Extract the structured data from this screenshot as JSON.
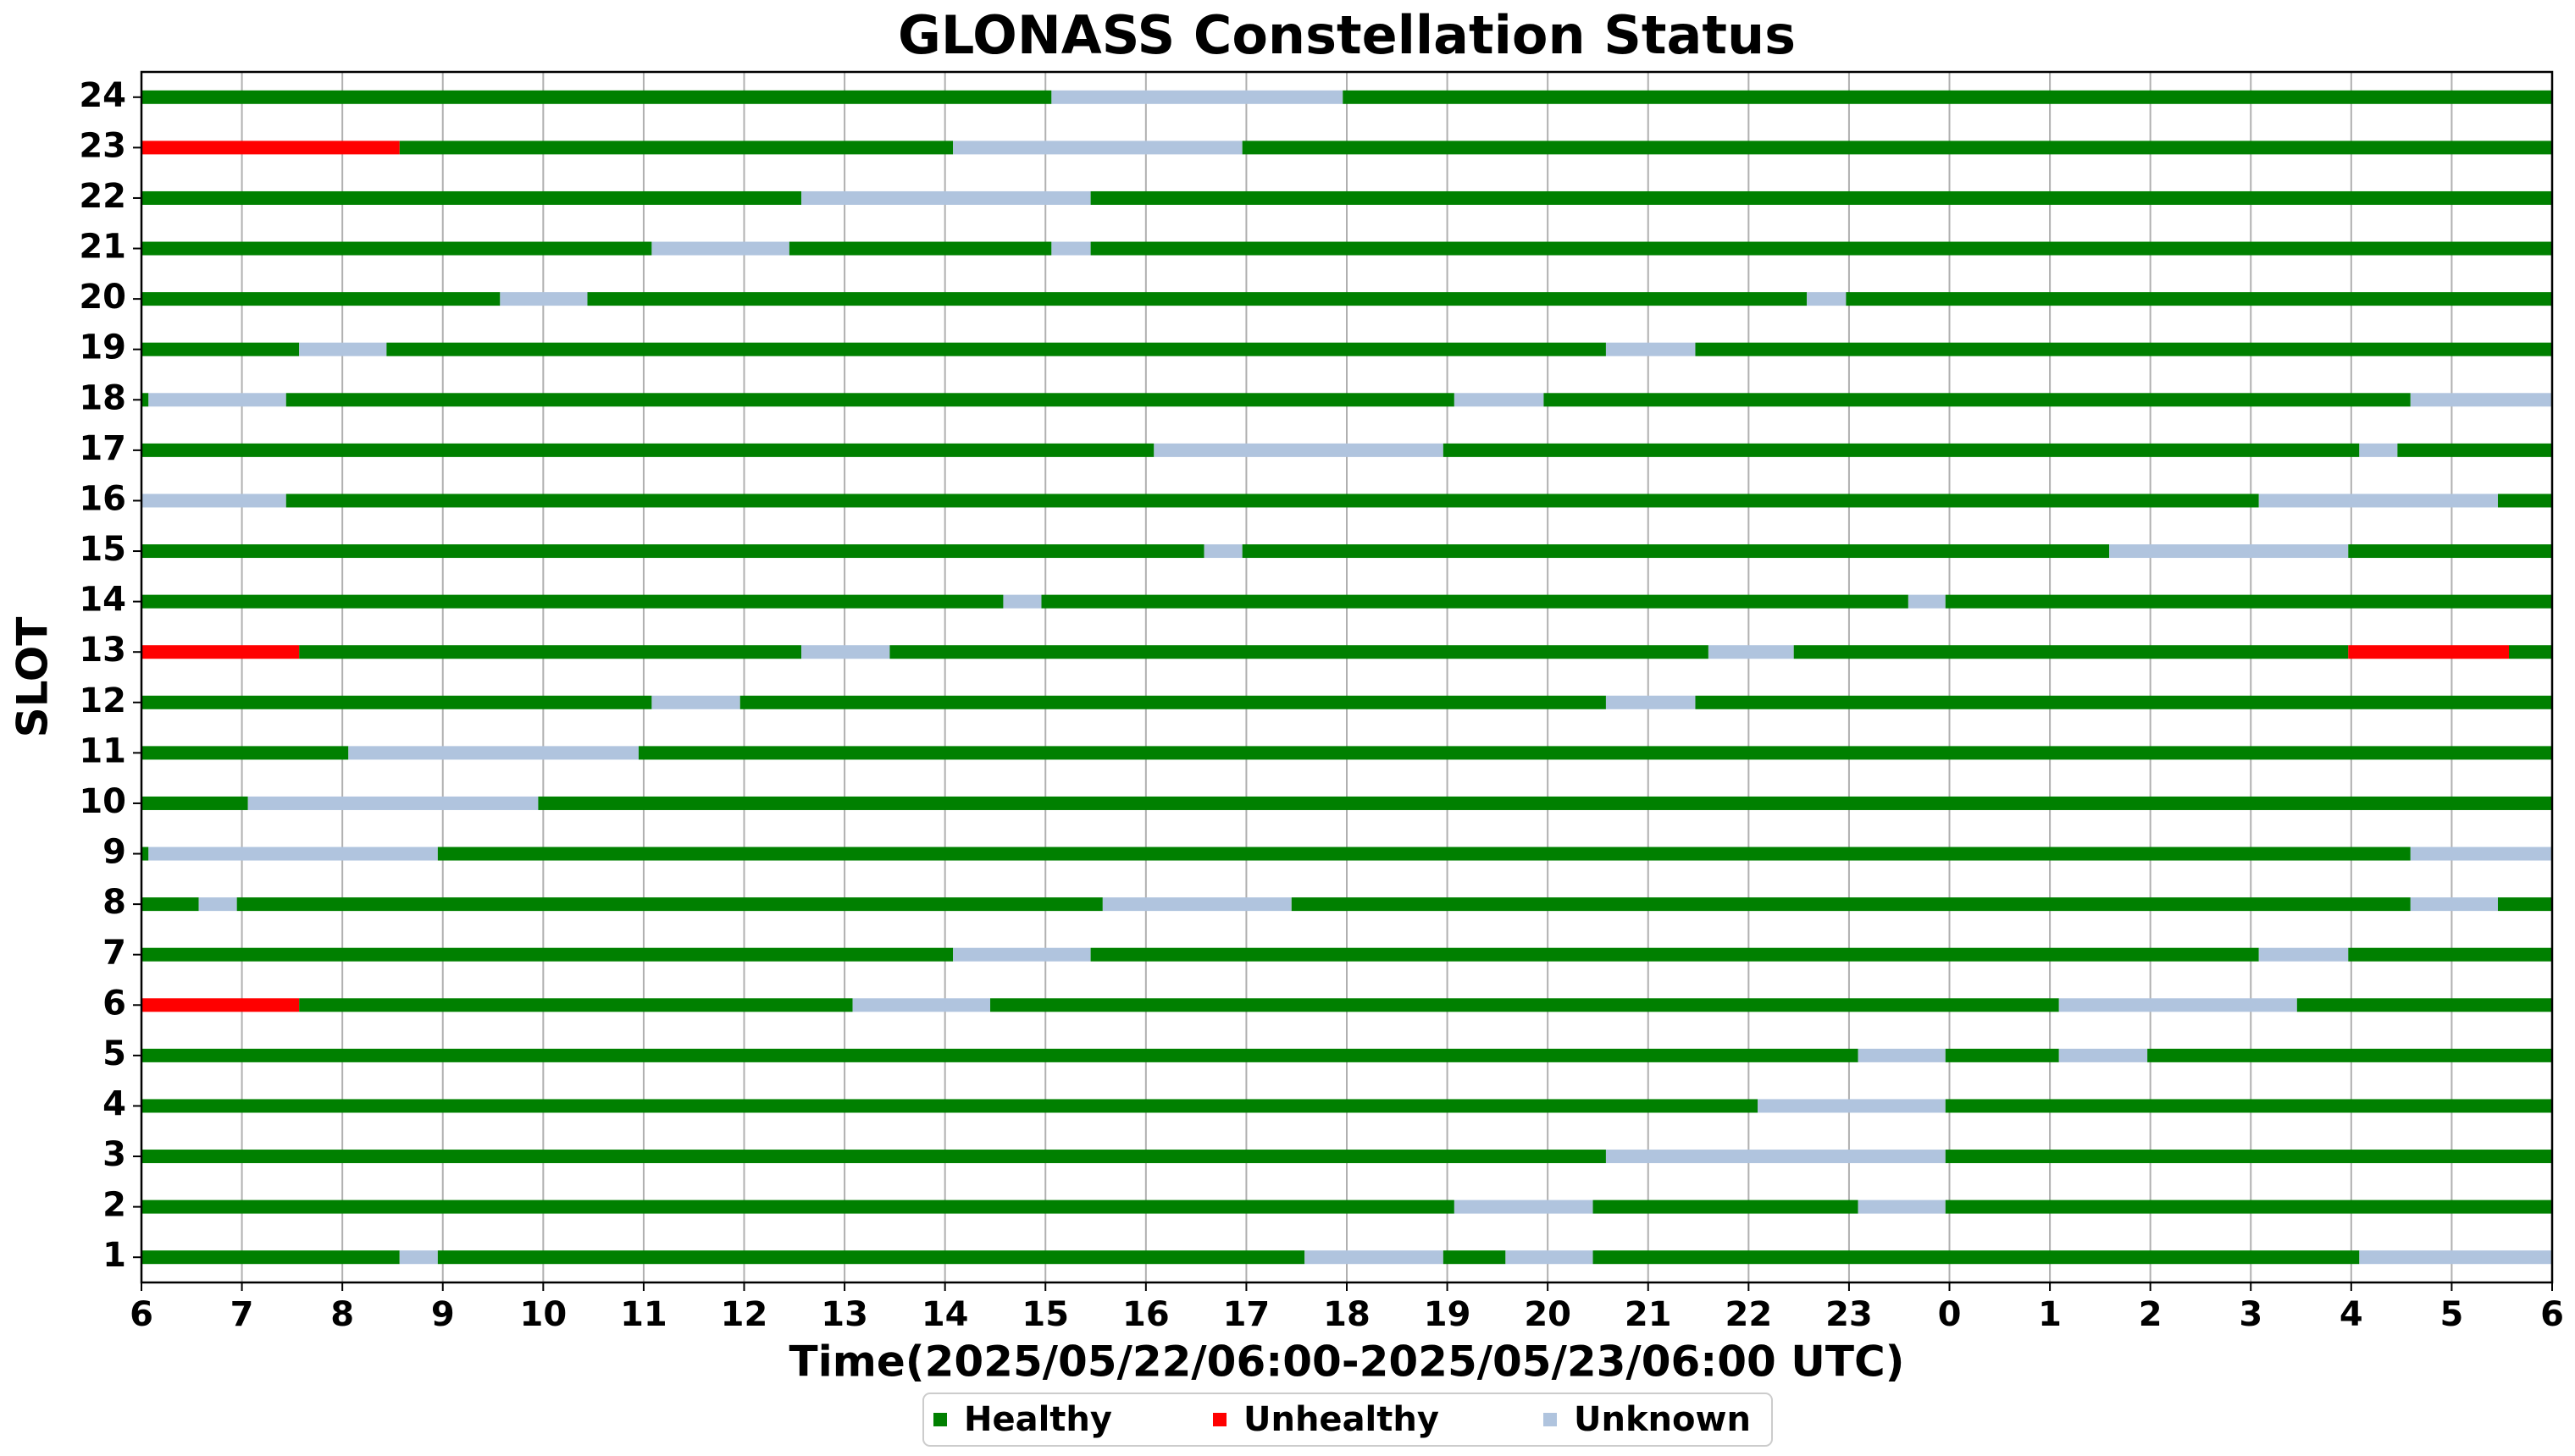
{
  "chart_data": {
    "type": "timeline",
    "title": "GLONASS Constellation Status",
    "xlabel": "Time(2025/05/22/06:00-2025/05/23/06:00 UTC)",
    "ylabel": "SLOT",
    "xlim": [
      6,
      30
    ],
    "xticks": [
      6,
      7,
      8,
      9,
      10,
      11,
      12,
      13,
      14,
      15,
      16,
      17,
      18,
      19,
      20,
      21,
      22,
      23,
      {
        "value": 24,
        "label": "0"
      },
      {
        "value": 25,
        "label": "1"
      },
      {
        "value": 26,
        "label": "2"
      },
      {
        "value": 27,
        "label": "3"
      },
      {
        "value": 28,
        "label": "4"
      },
      {
        "value": 29,
        "label": "5"
      },
      {
        "value": 30,
        "label": "6"
      }
    ],
    "grid": true,
    "legend": "lower center",
    "series": [
      {
        "name": "Healthy",
        "color": "#008000"
      },
      {
        "name": "Unhealthy",
        "color": "#ff0000"
      },
      {
        "name": "Unknown",
        "color": "#b0c4de"
      }
    ],
    "slots": [
      {
        "name": "1",
        "segments": [
          [
            6,
            8.57,
            "Healthy"
          ],
          [
            8.57,
            8.95,
            "Unknown"
          ],
          [
            8.95,
            17.58,
            "Healthy"
          ],
          [
            17.58,
            18.96,
            "Unknown"
          ],
          [
            18.96,
            19.58,
            "Healthy"
          ],
          [
            19.58,
            20.45,
            "Unknown"
          ],
          [
            20.45,
            28.08,
            "Healthy"
          ],
          [
            28.08,
            30,
            "Unknown"
          ]
        ]
      },
      {
        "name": "2",
        "segments": [
          [
            6,
            19.07,
            "Healthy"
          ],
          [
            19.07,
            20.45,
            "Unknown"
          ],
          [
            20.45,
            23.09,
            "Healthy"
          ],
          [
            23.09,
            23.96,
            "Unknown"
          ],
          [
            23.96,
            30,
            "Healthy"
          ]
        ]
      },
      {
        "name": "3",
        "segments": [
          [
            6,
            20.58,
            "Healthy"
          ],
          [
            20.58,
            23.96,
            "Unknown"
          ],
          [
            23.96,
            30,
            "Healthy"
          ]
        ]
      },
      {
        "name": "4",
        "segments": [
          [
            6,
            22.09,
            "Healthy"
          ],
          [
            22.09,
            23.96,
            "Unknown"
          ],
          [
            23.96,
            30,
            "Healthy"
          ]
        ]
      },
      {
        "name": "5",
        "segments": [
          [
            6,
            23.09,
            "Healthy"
          ],
          [
            23.09,
            23.96,
            "Unknown"
          ],
          [
            23.96,
            25.09,
            "Healthy"
          ],
          [
            25.09,
            25.97,
            "Unknown"
          ],
          [
            25.97,
            30,
            "Healthy"
          ]
        ]
      },
      {
        "name": "6",
        "segments": [
          [
            6,
            7.57,
            "Unhealthy"
          ],
          [
            7.57,
            13.08,
            "Healthy"
          ],
          [
            13.08,
            14.45,
            "Unknown"
          ],
          [
            14.45,
            25.09,
            "Healthy"
          ],
          [
            25.09,
            27.46,
            "Unknown"
          ],
          [
            27.46,
            30,
            "Healthy"
          ]
        ]
      },
      {
        "name": "7",
        "segments": [
          [
            6,
            14.08,
            "Healthy"
          ],
          [
            14.08,
            15.45,
            "Unknown"
          ],
          [
            15.45,
            27.08,
            "Healthy"
          ],
          [
            27.08,
            27.97,
            "Unknown"
          ],
          [
            27.97,
            30,
            "Healthy"
          ]
        ]
      },
      {
        "name": "8",
        "segments": [
          [
            6,
            6.57,
            "Healthy"
          ],
          [
            6.57,
            6.95,
            "Unknown"
          ],
          [
            6.95,
            15.57,
            "Healthy"
          ],
          [
            15.57,
            17.45,
            "Unknown"
          ],
          [
            17.45,
            28.59,
            "Healthy"
          ],
          [
            28.59,
            29.46,
            "Unknown"
          ],
          [
            29.46,
            30,
            "Healthy"
          ]
        ]
      },
      {
        "name": "9",
        "segments": [
          [
            6,
            6.07,
            "Healthy"
          ],
          [
            6.07,
            8.95,
            "Unknown"
          ],
          [
            8.95,
            28.59,
            "Healthy"
          ],
          [
            28.59,
            30,
            "Unknown"
          ]
        ]
      },
      {
        "name": "10",
        "segments": [
          [
            6,
            7.06,
            "Healthy"
          ],
          [
            7.06,
            9.95,
            "Unknown"
          ],
          [
            9.95,
            30,
            "Healthy"
          ]
        ]
      },
      {
        "name": "11",
        "segments": [
          [
            6,
            8.06,
            "Healthy"
          ],
          [
            8.06,
            10.95,
            "Unknown"
          ],
          [
            10.95,
            30,
            "Healthy"
          ]
        ]
      },
      {
        "name": "12",
        "segments": [
          [
            6,
            11.08,
            "Healthy"
          ],
          [
            11.08,
            11.96,
            "Unknown"
          ],
          [
            11.96,
            20.58,
            "Healthy"
          ],
          [
            20.58,
            21.47,
            "Unknown"
          ],
          [
            21.47,
            30,
            "Healthy"
          ]
        ]
      },
      {
        "name": "13",
        "segments": [
          [
            6,
            7.57,
            "Unhealthy"
          ],
          [
            7.57,
            12.57,
            "Healthy"
          ],
          [
            12.57,
            13.45,
            "Unknown"
          ],
          [
            13.45,
            21.6,
            "Healthy"
          ],
          [
            21.6,
            22.45,
            "Unknown"
          ],
          [
            22.45,
            27.97,
            "Healthy"
          ],
          [
            27.97,
            29.57,
            "Unhealthy"
          ],
          [
            29.57,
            30,
            "Healthy"
          ]
        ]
      },
      {
        "name": "14",
        "segments": [
          [
            6,
            14.58,
            "Healthy"
          ],
          [
            14.58,
            14.96,
            "Unknown"
          ],
          [
            14.96,
            23.59,
            "Healthy"
          ],
          [
            23.59,
            23.96,
            "Unknown"
          ],
          [
            23.96,
            30,
            "Healthy"
          ]
        ]
      },
      {
        "name": "15",
        "segments": [
          [
            6,
            16.58,
            "Healthy"
          ],
          [
            16.58,
            16.96,
            "Unknown"
          ],
          [
            16.96,
            25.59,
            "Healthy"
          ],
          [
            25.59,
            27.97,
            "Unknown"
          ],
          [
            27.97,
            30,
            "Healthy"
          ]
        ]
      },
      {
        "name": "16",
        "segments": [
          [
            6,
            7.44,
            "Unknown"
          ],
          [
            7.44,
            27.08,
            "Healthy"
          ],
          [
            27.08,
            29.46,
            "Unknown"
          ],
          [
            29.46,
            30,
            "Healthy"
          ]
        ]
      },
      {
        "name": "17",
        "segments": [
          [
            6,
            16.08,
            "Healthy"
          ],
          [
            16.08,
            18.96,
            "Unknown"
          ],
          [
            18.96,
            28.08,
            "Healthy"
          ],
          [
            28.08,
            28.46,
            "Unknown"
          ],
          [
            28.46,
            30,
            "Healthy"
          ]
        ]
      },
      {
        "name": "18",
        "segments": [
          [
            6,
            6.07,
            "Healthy"
          ],
          [
            6.07,
            7.44,
            "Unknown"
          ],
          [
            7.44,
            19.07,
            "Healthy"
          ],
          [
            19.07,
            19.96,
            "Unknown"
          ],
          [
            19.96,
            28.59,
            "Healthy"
          ],
          [
            28.59,
            30,
            "Unknown"
          ]
        ]
      },
      {
        "name": "19",
        "segments": [
          [
            6,
            7.57,
            "Healthy"
          ],
          [
            7.57,
            8.44,
            "Unknown"
          ],
          [
            8.44,
            20.58,
            "Healthy"
          ],
          [
            20.58,
            21.47,
            "Unknown"
          ],
          [
            21.47,
            30,
            "Healthy"
          ]
        ]
      },
      {
        "name": "20",
        "segments": [
          [
            6,
            9.57,
            "Healthy"
          ],
          [
            9.57,
            10.44,
            "Unknown"
          ],
          [
            10.44,
            22.58,
            "Healthy"
          ],
          [
            22.58,
            22.97,
            "Unknown"
          ],
          [
            22.97,
            30,
            "Healthy"
          ]
        ]
      },
      {
        "name": "21",
        "segments": [
          [
            6,
            11.08,
            "Healthy"
          ],
          [
            11.08,
            12.45,
            "Unknown"
          ],
          [
            12.45,
            15.06,
            "Healthy"
          ],
          [
            15.06,
            15.45,
            "Unknown"
          ],
          [
            15.45,
            30,
            "Healthy"
          ]
        ]
      },
      {
        "name": "22",
        "segments": [
          [
            6,
            12.57,
            "Healthy"
          ],
          [
            12.57,
            15.45,
            "Unknown"
          ],
          [
            15.45,
            30,
            "Healthy"
          ]
        ]
      },
      {
        "name": "23",
        "segments": [
          [
            6,
            8.57,
            "Unhealthy"
          ],
          [
            8.57,
            14.08,
            "Healthy"
          ],
          [
            14.08,
            16.96,
            "Unknown"
          ],
          [
            16.96,
            30,
            "Healthy"
          ]
        ]
      },
      {
        "name": "24",
        "segments": [
          [
            6,
            15.06,
            "Healthy"
          ],
          [
            15.06,
            17.96,
            "Unknown"
          ],
          [
            17.96,
            30,
            "Healthy"
          ]
        ]
      }
    ]
  }
}
